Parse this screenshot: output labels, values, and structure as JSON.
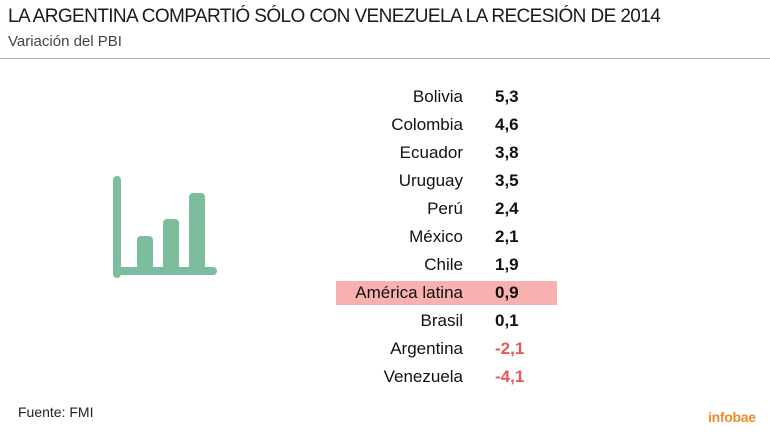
{
  "title": "LA ARGENTINA COMPARTIÓ SÓLO CON VENEZUELA LA RECESIÓN DE 2014",
  "subtitle": "Variación del PBI",
  "source": "Fuente: FMI",
  "logo": "infobae",
  "colors": {
    "icon": "#7bbd9c",
    "highlight": "#f9b1b0",
    "negative": "#e8585a",
    "logo": "#f08a2c"
  },
  "icon": "bar-chart-icon",
  "chart_data": {
    "type": "table",
    "title": "LA ARGENTINA COMPARTIÓ SÓLO CON VENEZUELA LA RECESIÓN DE 2014",
    "subtitle": "Variación del PBI",
    "highlighted": "América latina",
    "rows": [
      {
        "label": "Bolivia",
        "value": "5,3"
      },
      {
        "label": "Colombia",
        "value": "4,6"
      },
      {
        "label": "Ecuador",
        "value": "3,8"
      },
      {
        "label": "Uruguay",
        "value": "3,5"
      },
      {
        "label": "Perú",
        "value": "2,4"
      },
      {
        "label": "México",
        "value": "2,1"
      },
      {
        "label": "Chile",
        "value": "1,9"
      },
      {
        "label": "América latina",
        "value": "0,9"
      },
      {
        "label": "Brasil",
        "value": "0,1"
      },
      {
        "label": "Argentina",
        "value": "-2,1"
      },
      {
        "label": "Venezuela",
        "value": "-4,1"
      }
    ]
  }
}
